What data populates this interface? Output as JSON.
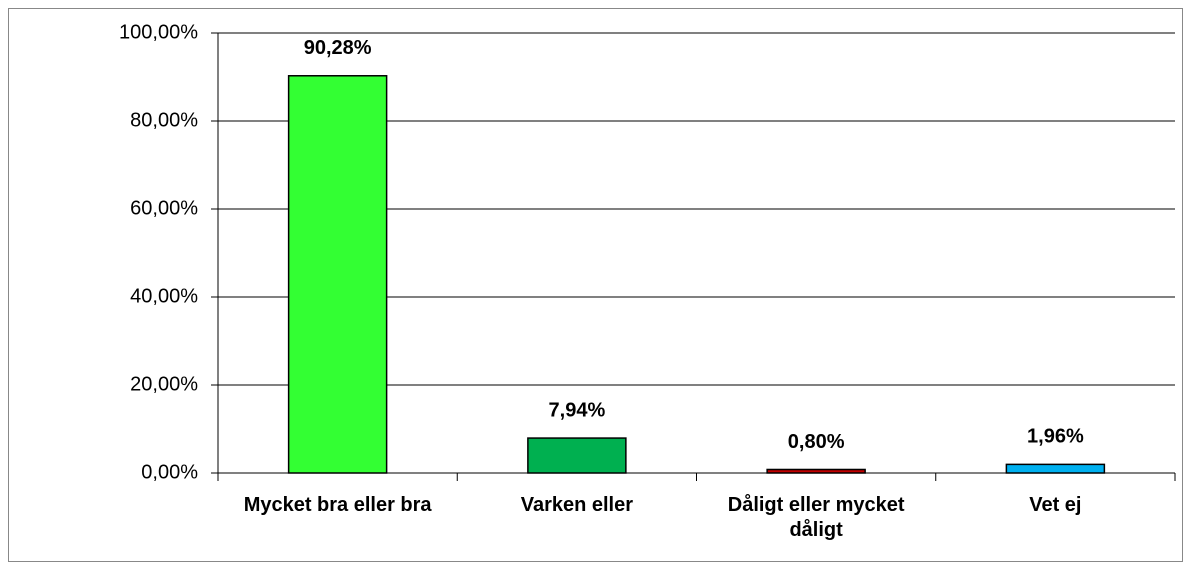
{
  "chart_data": {
    "type": "bar",
    "categories": [
      "Mycket bra eller bra",
      "Varken eller",
      "Dåligt eller mycket dåligt",
      "Vet ej"
    ],
    "values": [
      90.28,
      7.94,
      0.8,
      1.96
    ],
    "value_labels": [
      "90,28%",
      "7,94%",
      "0,80%",
      "1,96%"
    ],
    "colors": [
      "#33ff33",
      "#00b050",
      "#c00000",
      "#00b0f0"
    ],
    "ylim": [
      0,
      100
    ],
    "yticks": [
      {
        "value": 0,
        "label": "0,00%"
      },
      {
        "value": 20,
        "label": "20,00%"
      },
      {
        "value": 40,
        "label": "40,00%"
      },
      {
        "value": 60,
        "label": "60,00%"
      },
      {
        "value": 80,
        "label": "80,00%"
      },
      {
        "value": 100,
        "label": "100,00%"
      }
    ],
    "grid": true
  }
}
